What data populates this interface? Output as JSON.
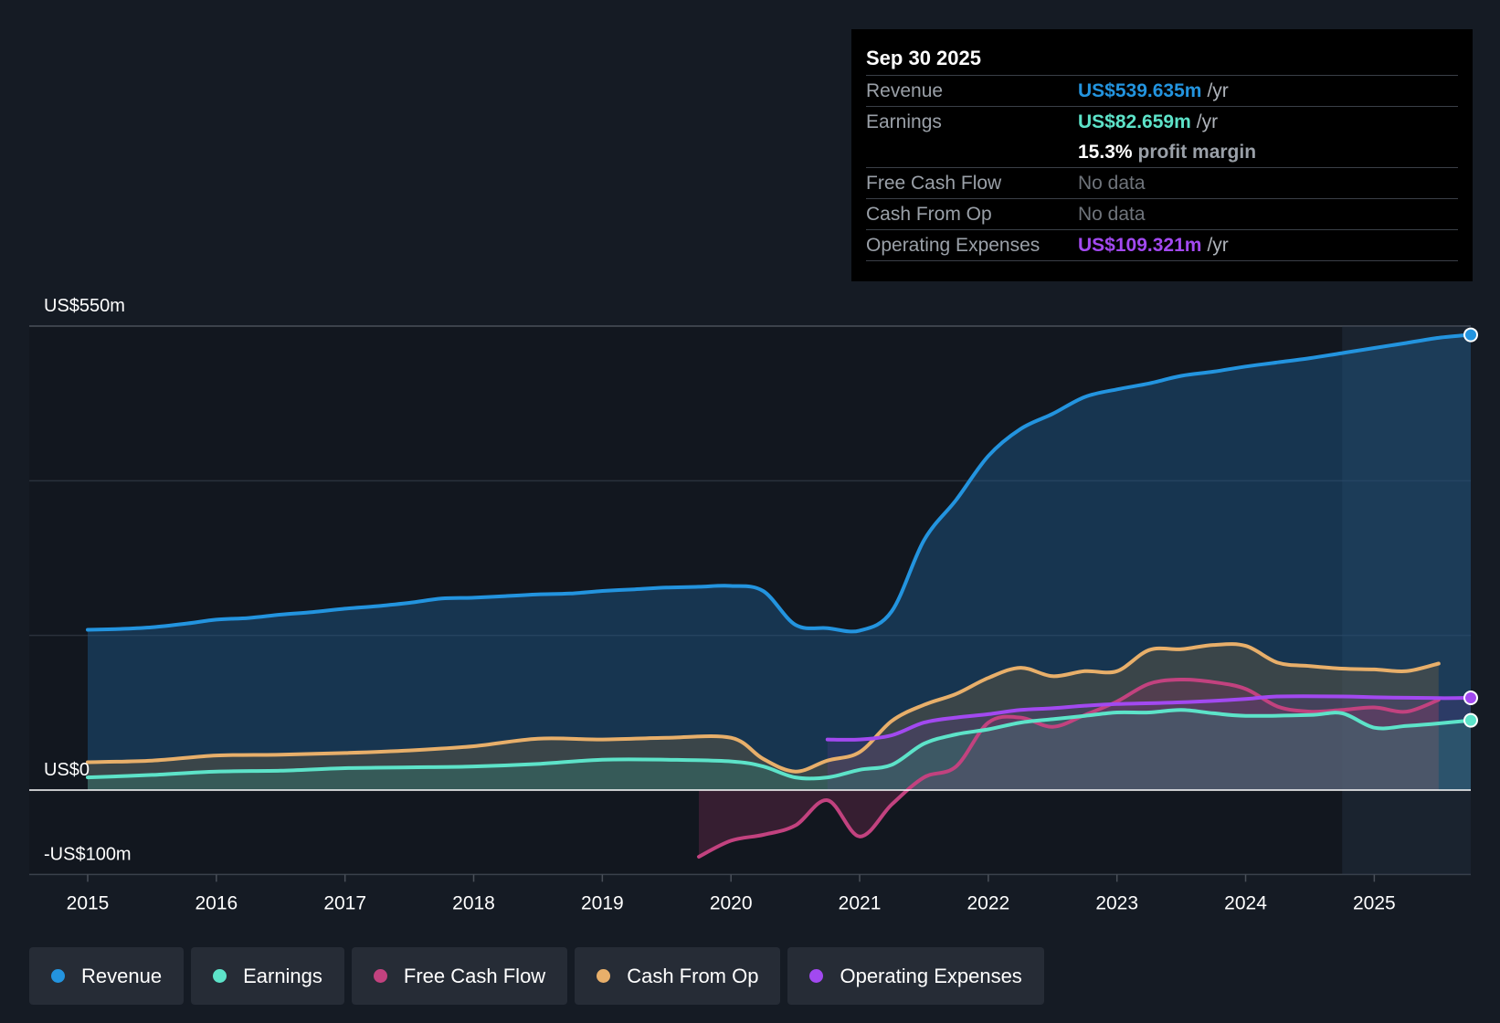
{
  "chart_data": {
    "type": "line",
    "x_ticks": [
      "2015",
      "2016",
      "2017",
      "2018",
      "2019",
      "2020",
      "2021",
      "2022",
      "2023",
      "2024",
      "2025"
    ],
    "y_labels": {
      "top": "US$550m",
      "zero": "US$0",
      "bottom": "-US$100m"
    },
    "ylim": [
      -100,
      550
    ],
    "xlim": [
      2015.0,
      2025.75
    ],
    "forecast_start": 2024.75,
    "series": [
      {
        "name": "Revenue",
        "color": "#2394df",
        "points": [
          [
            2015.0,
            190
          ],
          [
            2015.25,
            191
          ],
          [
            2015.5,
            193
          ],
          [
            2015.75,
            197
          ],
          [
            2016.0,
            202
          ],
          [
            2016.25,
            204
          ],
          [
            2016.5,
            208
          ],
          [
            2016.75,
            211
          ],
          [
            2017.0,
            215
          ],
          [
            2017.25,
            218
          ],
          [
            2017.5,
            222
          ],
          [
            2017.75,
            227
          ],
          [
            2018.0,
            228
          ],
          [
            2018.25,
            230
          ],
          [
            2018.5,
            232
          ],
          [
            2018.75,
            233
          ],
          [
            2019.0,
            236
          ],
          [
            2019.25,
            238
          ],
          [
            2019.5,
            240
          ],
          [
            2019.75,
            241
          ],
          [
            2020.0,
            242
          ],
          [
            2020.25,
            236
          ],
          [
            2020.5,
            196
          ],
          [
            2020.75,
            192
          ],
          [
            2021.0,
            189
          ],
          [
            2021.25,
            212
          ],
          [
            2021.5,
            296
          ],
          [
            2021.75,
            344
          ],
          [
            2022.0,
            396
          ],
          [
            2022.25,
            428
          ],
          [
            2022.5,
            446
          ],
          [
            2022.75,
            466
          ],
          [
            2023.0,
            475
          ],
          [
            2023.25,
            482
          ],
          [
            2023.5,
            491
          ],
          [
            2023.75,
            496
          ],
          [
            2024.0,
            502
          ],
          [
            2024.25,
            507
          ],
          [
            2024.5,
            512
          ],
          [
            2024.75,
            518
          ],
          [
            2025.0,
            524
          ],
          [
            2025.25,
            530
          ],
          [
            2025.5,
            536
          ],
          [
            2025.75,
            539.635
          ]
        ]
      },
      {
        "name": "Earnings",
        "color": "#5de3c9",
        "points": [
          [
            2015.0,
            15
          ],
          [
            2015.5,
            18
          ],
          [
            2016.0,
            22
          ],
          [
            2016.5,
            23
          ],
          [
            2017.0,
            26
          ],
          [
            2017.5,
            27
          ],
          [
            2018.0,
            28
          ],
          [
            2018.5,
            31
          ],
          [
            2019.0,
            36
          ],
          [
            2019.5,
            36
          ],
          [
            2020.0,
            34
          ],
          [
            2020.25,
            28
          ],
          [
            2020.5,
            15
          ],
          [
            2020.75,
            15
          ],
          [
            2021.0,
            24
          ],
          [
            2021.25,
            30
          ],
          [
            2021.5,
            55
          ],
          [
            2021.75,
            66
          ],
          [
            2022.0,
            72
          ],
          [
            2022.25,
            80
          ],
          [
            2022.5,
            84
          ],
          [
            2022.75,
            88
          ],
          [
            2023.0,
            92
          ],
          [
            2023.25,
            92
          ],
          [
            2023.5,
            95
          ],
          [
            2023.75,
            91
          ],
          [
            2024.0,
            88
          ],
          [
            2024.5,
            89
          ],
          [
            2024.75,
            91
          ],
          [
            2025.0,
            74
          ],
          [
            2025.25,
            76
          ],
          [
            2025.5,
            79
          ],
          [
            2025.75,
            82.659
          ]
        ]
      },
      {
        "name": "Free Cash Flow",
        "color": "#c2427f",
        "points": [
          [
            2019.75,
            -79
          ],
          [
            2020.0,
            -60
          ],
          [
            2020.25,
            -53
          ],
          [
            2020.5,
            -42
          ],
          [
            2020.75,
            -12
          ],
          [
            2021.0,
            -55
          ],
          [
            2021.25,
            -17
          ],
          [
            2021.5,
            15
          ],
          [
            2021.75,
            28
          ],
          [
            2022.0,
            80
          ],
          [
            2022.25,
            86
          ],
          [
            2022.5,
            75
          ],
          [
            2022.75,
            89
          ],
          [
            2023.0,
            105
          ],
          [
            2023.25,
            126
          ],
          [
            2023.5,
            131
          ],
          [
            2023.75,
            128
          ],
          [
            2024.0,
            120
          ],
          [
            2024.25,
            99
          ],
          [
            2024.5,
            93
          ],
          [
            2024.75,
            95
          ],
          [
            2025.0,
            98
          ],
          [
            2025.25,
            93
          ],
          [
            2025.5,
            107
          ]
        ]
      },
      {
        "name": "Cash From Op",
        "color": "#e8af6a",
        "points": [
          [
            2015.0,
            33
          ],
          [
            2015.5,
            35
          ],
          [
            2016.0,
            41
          ],
          [
            2016.5,
            42
          ],
          [
            2017.0,
            44
          ],
          [
            2017.5,
            47
          ],
          [
            2018.0,
            52
          ],
          [
            2018.5,
            61
          ],
          [
            2019.0,
            60
          ],
          [
            2019.5,
            62
          ],
          [
            2020.0,
            62
          ],
          [
            2020.25,
            37
          ],
          [
            2020.5,
            22
          ],
          [
            2020.75,
            35
          ],
          [
            2021.0,
            45
          ],
          [
            2021.25,
            82
          ],
          [
            2021.5,
            101
          ],
          [
            2021.75,
            114
          ],
          [
            2022.0,
            133
          ],
          [
            2022.25,
            145
          ],
          [
            2022.5,
            135
          ],
          [
            2022.75,
            141
          ],
          [
            2023.0,
            141
          ],
          [
            2023.25,
            166
          ],
          [
            2023.5,
            167
          ],
          [
            2023.75,
            172
          ],
          [
            2024.0,
            171
          ],
          [
            2024.25,
            151
          ],
          [
            2024.5,
            147
          ],
          [
            2024.75,
            144
          ],
          [
            2025.0,
            143
          ],
          [
            2025.25,
            141
          ],
          [
            2025.5,
            150
          ]
        ]
      },
      {
        "name": "Operating Expenses",
        "color": "#a249f0",
        "points": [
          [
            2020.75,
            60
          ],
          [
            2021.0,
            60
          ],
          [
            2021.25,
            65
          ],
          [
            2021.5,
            80
          ],
          [
            2021.75,
            86
          ],
          [
            2022.0,
            90
          ],
          [
            2022.25,
            95
          ],
          [
            2022.5,
            97
          ],
          [
            2022.75,
            100
          ],
          [
            2023.0,
            102
          ],
          [
            2023.5,
            104
          ],
          [
            2024.0,
            108
          ],
          [
            2024.25,
            111
          ],
          [
            2024.75,
            111
          ],
          [
            2025.0,
            110
          ],
          [
            2025.5,
            109
          ],
          [
            2025.75,
            109.321
          ]
        ]
      }
    ]
  },
  "tooltip": {
    "date": "Sep 30 2025",
    "rows": {
      "revenue": {
        "label": "Revenue",
        "value": "US$539.635m",
        "unit": "/yr",
        "color": "#2394df"
      },
      "earnings": {
        "label": "Earnings",
        "value": "US$82.659m",
        "unit": "/yr",
        "color": "#5de3c9"
      },
      "margin": {
        "value": "15.3%",
        "text": "profit margin"
      },
      "fcf": {
        "label": "Free Cash Flow",
        "value": "No data"
      },
      "cfo": {
        "label": "Cash From Op",
        "value": "No data"
      },
      "opex": {
        "label": "Operating Expenses",
        "value": "US$109.321m",
        "unit": "/yr",
        "color": "#a249f0"
      }
    }
  },
  "legend": [
    {
      "label": "Revenue",
      "color": "#2394df"
    },
    {
      "label": "Earnings",
      "color": "#5de3c9"
    },
    {
      "label": "Free Cash Flow",
      "color": "#c2427f"
    },
    {
      "label": "Cash From Op",
      "color": "#e8af6a"
    },
    {
      "label": "Operating Expenses",
      "color": "#a249f0"
    }
  ]
}
